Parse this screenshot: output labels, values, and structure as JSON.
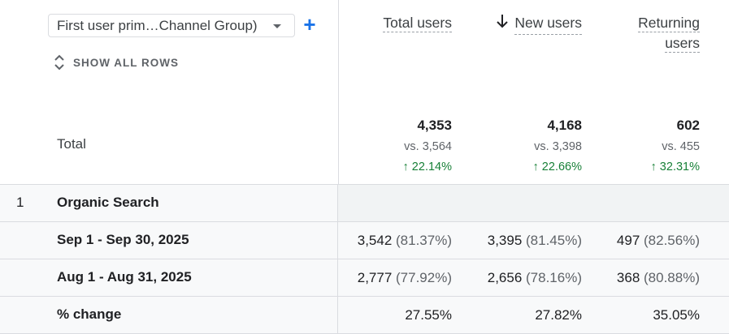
{
  "dimension": {
    "selected": "First user prim…Channel Group)",
    "show_all_rows": "SHOW ALL ROWS"
  },
  "columns": {
    "total_users": "Total users",
    "new_users": "New users",
    "returning_users_line1": "Returning",
    "returning_users_line2": "users"
  },
  "totals": {
    "label": "Total",
    "total_users": {
      "value": "4,353",
      "vs": "vs. 3,564",
      "change": "↑ 22.14%"
    },
    "new_users": {
      "value": "4,168",
      "vs": "vs. 3,398",
      "change": "↑ 22.66%"
    },
    "returning_users": {
      "value": "602",
      "vs": "vs. 455",
      "change": "↑ 32.31%"
    }
  },
  "rows": [
    {
      "index": "1",
      "name": "Organic Search",
      "sub_rows": [
        {
          "label": "Sep 1 - Sep 30, 2025",
          "total_users": "3,542",
          "total_pct": "(81.37%)",
          "new_users": "3,395",
          "new_pct": "(81.45%)",
          "returning_users": "497",
          "returning_pct": "(82.56%)"
        },
        {
          "label": "Aug 1 - Aug 31, 2025",
          "total_users": "2,777",
          "total_pct": "(77.92%)",
          "new_users": "2,656",
          "new_pct": "(78.16%)",
          "returning_users": "368",
          "returning_pct": "(80.88%)"
        },
        {
          "label": "% change",
          "total_users": "27.55%",
          "new_users": "27.82%",
          "returning_users": "35.05%"
        }
      ]
    }
  ],
  "colors": {
    "accent": "#1a73e8",
    "positive": "#188038",
    "border": "#dadce0"
  },
  "icons": {
    "add": "plus-icon",
    "expand": "unfold-more-icon",
    "sort": "arrow-down-icon",
    "dropdown": "caret-down-icon"
  }
}
